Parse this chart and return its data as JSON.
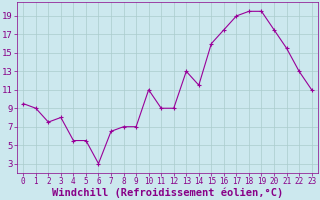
{
  "x": [
    0,
    1,
    2,
    3,
    4,
    5,
    6,
    7,
    8,
    9,
    10,
    11,
    12,
    13,
    14,
    15,
    16,
    17,
    18,
    19,
    20,
    21,
    22,
    23
  ],
  "y": [
    9.5,
    9.0,
    7.5,
    8.0,
    5.5,
    5.5,
    3.0,
    6.5,
    7.0,
    7.0,
    11.0,
    9.0,
    9.0,
    13.0,
    11.5,
    16.0,
    17.5,
    19.0,
    19.5,
    19.5,
    17.5,
    15.5,
    13.0,
    11.0
  ],
  "line_color": "#990099",
  "marker": "+",
  "marker_size": 3,
  "marker_lw": 0.8,
  "line_width": 0.8,
  "bg_color": "#cce8ee",
  "grid_color": "#aacccc",
  "xlabel": "Windchill (Refroidissement éolien,°C)",
  "xlabel_color": "#880088",
  "yticks": [
    3,
    5,
    7,
    9,
    11,
    13,
    15,
    17,
    19
  ],
  "xticks": [
    0,
    1,
    2,
    3,
    4,
    5,
    6,
    7,
    8,
    9,
    10,
    11,
    12,
    13,
    14,
    15,
    16,
    17,
    18,
    19,
    20,
    21,
    22,
    23
  ],
  "ylim": [
    2.0,
    20.5
  ],
  "xlim": [
    -0.5,
    23.5
  ],
  "tick_color": "#880088",
  "ytick_labelsize": 6.5,
  "xtick_labelsize": 5.5,
  "xlabel_fontsize": 7.5,
  "figsize": [
    3.2,
    2.0
  ],
  "dpi": 100
}
